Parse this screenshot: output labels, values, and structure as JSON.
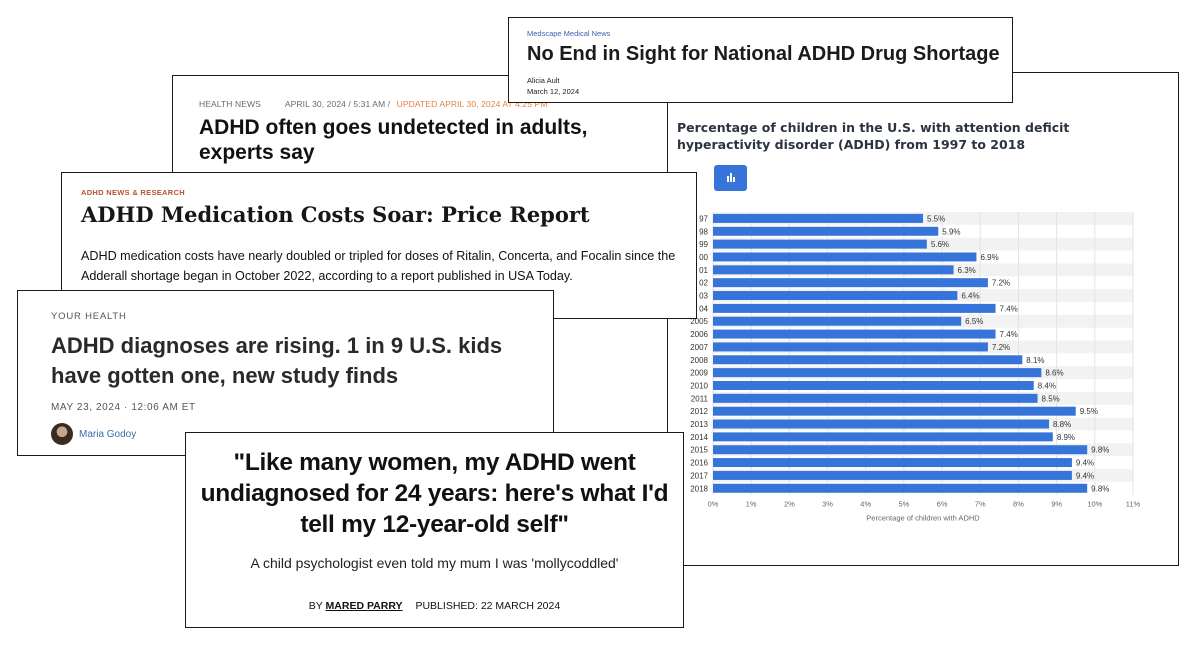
{
  "chart_card": {
    "title": "Percentage of children in the U.S. with attention deficit hyperactivity disorder (ADHD) from 1997 to 2018"
  },
  "chart_data": {
    "type": "bar",
    "orientation": "horizontal",
    "categories": [
      "1997",
      "1998",
      "1999",
      "2000",
      "2001",
      "2002",
      "2003",
      "2004",
      "2005",
      "2006",
      "2007",
      "2008",
      "2009",
      "2010",
      "2011",
      "2012",
      "2013",
      "2014",
      "2015",
      "2016",
      "2017",
      "2018"
    ],
    "values": [
      5.5,
      5.9,
      5.6,
      6.9,
      6.3,
      7.2,
      6.4,
      7.4,
      6.5,
      7.4,
      7.2,
      8.1,
      8.6,
      8.4,
      8.5,
      9.5,
      8.8,
      8.9,
      9.8,
      9.4,
      9.4,
      9.8
    ],
    "value_labels": [
      "5.5%",
      "5.9%",
      "5.6%",
      "6.9%",
      "6.3%",
      "7.2%",
      "6.4%",
      "7.4%",
      "6.5%",
      "7.4%",
      "7.2%",
      "8.1%",
      "8.6%",
      "8.4%",
      "8.5%",
      "9.5%",
      "8.8%",
      "8.9%",
      "9.8%",
      "9.4%",
      "9.4%",
      "9.8%"
    ],
    "category_labels_visible": [
      "97",
      "98",
      "99",
      "00",
      "01",
      "02",
      "03",
      "04",
      "2005",
      "2006",
      "2007",
      "2008",
      "2009",
      "2010",
      "2011",
      "2012",
      "2013",
      "2014",
      "2015",
      "2016",
      "2017",
      "2018"
    ],
    "x_ticks": [
      "0%",
      "1%",
      "2%",
      "3%",
      "4%",
      "5%",
      "6%",
      "7%",
      "8%",
      "9%",
      "10%",
      "11%"
    ],
    "xlim": [
      0,
      11
    ],
    "xlabel": "Percentage of children with ADHD",
    "bar_color": "#3674d9",
    "grid": true
  },
  "health_news": {
    "section": "HEALTH NEWS",
    "date": "APRIL 30, 2024 / 5:31 AM /",
    "updated": "UPDATED APRIL 30, 2024 AT 4:25 PM",
    "headline": "ADHD often goes undetected in adults, experts say"
  },
  "medscape": {
    "source": "Medscape Medical News",
    "headline": "No End in Sight for National ADHD Drug Shortage",
    "author": "Alicia Ault",
    "date": "March 12, 2024"
  },
  "price_report": {
    "tag": "ADHD NEWS & RESEARCH",
    "headline": "ADHD Medication Costs Soar: Price Report",
    "body": "ADHD medication costs have nearly doubled or tripled for doses of Ritalin, Concerta, and Focalin since the Adderall shortage began in October 2022, according to a report published in USA Today."
  },
  "npr": {
    "tag": "YOUR HEALTH",
    "headline": "ADHD diagnoses are rising. 1 in 9 U.S. kids have gotten one, new study finds",
    "date": "MAY 23, 2024 · 12:06 AM ET",
    "author": "Maria Godoy"
  },
  "quote_card": {
    "headline": "\"Like many women, my ADHD went undiagnosed for 24 years: here's what I'd tell my 12-year-old self\"",
    "subhead": "A child psychologist even told my mum I was 'mollycoddled'",
    "by_prefix": "BY",
    "author": "MARED PARRY",
    "published": "PUBLISHED: 22 MARCH 2024"
  }
}
